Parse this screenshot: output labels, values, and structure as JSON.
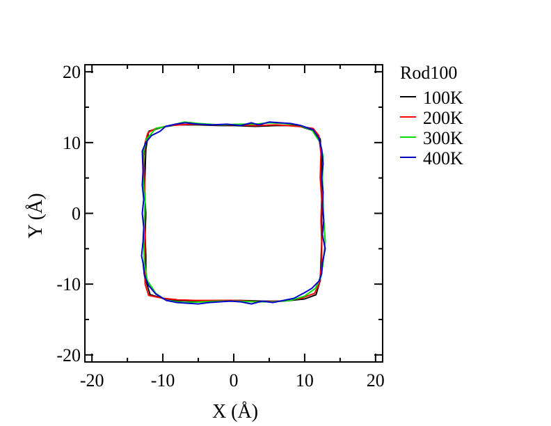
{
  "chart_data": {
    "type": "line",
    "title": "",
    "xlabel": "X (Å)",
    "ylabel": "Y (Å)",
    "xlim": [
      -21,
      21
    ],
    "ylim": [
      -21,
      21
    ],
    "xticks": [
      -20,
      -10,
      0,
      10,
      20
    ],
    "yticks": [
      -20,
      -10,
      0,
      10,
      20
    ],
    "xtick_labels": [
      "-20",
      "-10",
      "0",
      "10",
      "20"
    ],
    "ytick_labels": [
      "-20",
      "-10",
      "0",
      "10",
      "20"
    ],
    "minor_tick_step": 5,
    "grid": false,
    "legend_position": "outside-right",
    "legend_title": "Rod100",
    "series": [
      {
        "name": "100K",
        "color": "#000000",
        "points": [
          [
            -12.0,
            11.6
          ],
          [
            -10.0,
            12.2
          ],
          [
            -8.0,
            12.5
          ],
          [
            -5.0,
            12.5
          ],
          [
            -2.0,
            12.4
          ],
          [
            0.0,
            12.4
          ],
          [
            3.0,
            12.3
          ],
          [
            6.0,
            12.4
          ],
          [
            9.0,
            12.4
          ],
          [
            11.5,
            11.6
          ],
          [
            12.2,
            10.5
          ],
          [
            12.4,
            8.0
          ],
          [
            12.3,
            5.0
          ],
          [
            12.4,
            2.0
          ],
          [
            12.4,
            -1.0
          ],
          [
            12.4,
            -4.0
          ],
          [
            12.3,
            -7.0
          ],
          [
            12.2,
            -9.5
          ],
          [
            11.6,
            -11.5
          ],
          [
            10.0,
            -12.1
          ],
          [
            7.0,
            -12.4
          ],
          [
            4.0,
            -12.4
          ],
          [
            1.0,
            -12.3
          ],
          [
            -2.0,
            -12.3
          ],
          [
            -5.0,
            -12.4
          ],
          [
            -8.0,
            -12.3
          ],
          [
            -10.0,
            -12.0
          ],
          [
            -11.8,
            -11.5
          ],
          [
            -12.4,
            -9.5
          ],
          [
            -12.4,
            -6.0
          ],
          [
            -12.5,
            -3.0
          ],
          [
            -12.4,
            0.0
          ],
          [
            -12.6,
            3.0
          ],
          [
            -12.5,
            6.0
          ],
          [
            -12.4,
            9.0
          ],
          [
            -12.0,
            11.6
          ]
        ]
      },
      {
        "name": "200K",
        "color": "#ff0000",
        "points": [
          [
            -12.1,
            11.4
          ],
          [
            -11.0,
            12.0
          ],
          [
            -9.0,
            12.4
          ],
          [
            -6.0,
            12.6
          ],
          [
            -3.0,
            12.5
          ],
          [
            0.0,
            12.5
          ],
          [
            3.0,
            12.4
          ],
          [
            6.0,
            12.5
          ],
          [
            9.0,
            12.3
          ],
          [
            11.2,
            12.0
          ],
          [
            12.0,
            11.0
          ],
          [
            12.3,
            8.5
          ],
          [
            12.2,
            5.0
          ],
          [
            12.4,
            2.0
          ],
          [
            12.3,
            -1.0
          ],
          [
            12.4,
            -4.0
          ],
          [
            12.4,
            -7.0
          ],
          [
            12.1,
            -9.8
          ],
          [
            11.4,
            -11.3
          ],
          [
            9.5,
            -12.0
          ],
          [
            6.5,
            -12.4
          ],
          [
            3.5,
            -12.5
          ],
          [
            0.5,
            -12.3
          ],
          [
            -2.5,
            -12.3
          ],
          [
            -5.5,
            -12.3
          ],
          [
            -8.0,
            -12.2
          ],
          [
            -10.0,
            -12.0
          ],
          [
            -12.0,
            -11.6
          ],
          [
            -12.5,
            -10.0
          ],
          [
            -12.6,
            -7.0
          ],
          [
            -12.5,
            -4.0
          ],
          [
            -12.6,
            -1.0
          ],
          [
            -12.5,
            2.0
          ],
          [
            -12.6,
            5.0
          ],
          [
            -12.7,
            8.0
          ],
          [
            -12.5,
            10.0
          ],
          [
            -12.1,
            11.4
          ]
        ]
      },
      {
        "name": "300K",
        "color": "#00dd00",
        "points": [
          [
            -12.8,
            8.5
          ],
          [
            -12.3,
            10.5
          ],
          [
            -11.0,
            12.0
          ],
          [
            -9.0,
            12.4
          ],
          [
            -7.0,
            12.9
          ],
          [
            -5.0,
            12.7
          ],
          [
            -2.0,
            12.5
          ],
          [
            1.0,
            12.6
          ],
          [
            3.0,
            12.6
          ],
          [
            5.0,
            12.8
          ],
          [
            7.0,
            12.7
          ],
          [
            9.0,
            12.5
          ],
          [
            11.0,
            11.8
          ],
          [
            12.2,
            10.0
          ],
          [
            12.6,
            8.0
          ],
          [
            12.5,
            5.0
          ],
          [
            12.6,
            2.0
          ],
          [
            12.7,
            -1.0
          ],
          [
            12.9,
            -4.0
          ],
          [
            12.6,
            -7.0
          ],
          [
            12.3,
            -9.0
          ],
          [
            11.5,
            -10.6
          ],
          [
            10.0,
            -11.7
          ],
          [
            8.0,
            -12.3
          ],
          [
            5.5,
            -12.5
          ],
          [
            3.0,
            -12.5
          ],
          [
            0.5,
            -12.4
          ],
          [
            -2.0,
            -12.4
          ],
          [
            -4.5,
            -12.5
          ],
          [
            -7.0,
            -12.6
          ],
          [
            -9.5,
            -12.3
          ],
          [
            -11.0,
            -11.3
          ],
          [
            -12.2,
            -9.5
          ],
          [
            -12.6,
            -7.0
          ],
          [
            -12.7,
            -4.0
          ],
          [
            -12.6,
            -1.0
          ],
          [
            -12.5,
            2.0
          ],
          [
            -12.8,
            5.0
          ],
          [
            -12.8,
            8.5
          ]
        ]
      },
      {
        "name": "400K",
        "color": "#0000cc",
        "points": [
          [
            -12.9,
            8.8
          ],
          [
            -12.4,
            10.0
          ],
          [
            -11.6,
            11.0
          ],
          [
            -10.4,
            11.6
          ],
          [
            -9.6,
            12.3
          ],
          [
            -8.2,
            12.6
          ],
          [
            -6.8,
            12.8
          ],
          [
            -5.0,
            12.6
          ],
          [
            -3.0,
            12.5
          ],
          [
            -1.0,
            12.6
          ],
          [
            1.0,
            12.4
          ],
          [
            2.5,
            12.8
          ],
          [
            3.5,
            12.5
          ],
          [
            5.0,
            12.9
          ],
          [
            6.5,
            12.8
          ],
          [
            8.0,
            12.7
          ],
          [
            9.5,
            12.4
          ],
          [
            11.2,
            11.8
          ],
          [
            12.0,
            10.6
          ],
          [
            12.4,
            9.0
          ],
          [
            12.6,
            7.0
          ],
          [
            12.4,
            5.0
          ],
          [
            12.6,
            3.0
          ],
          [
            12.5,
            1.0
          ],
          [
            12.7,
            -1.0
          ],
          [
            12.5,
            -3.0
          ],
          [
            12.9,
            -5.0
          ],
          [
            12.5,
            -7.0
          ],
          [
            12.4,
            -8.5
          ],
          [
            12.0,
            -9.6
          ],
          [
            11.0,
            -10.6
          ],
          [
            10.0,
            -11.2
          ],
          [
            8.5,
            -12.0
          ],
          [
            7.0,
            -12.3
          ],
          [
            5.5,
            -12.6
          ],
          [
            4.0,
            -12.4
          ],
          [
            2.5,
            -12.8
          ],
          [
            1.0,
            -12.5
          ],
          [
            -0.5,
            -12.4
          ],
          [
            -2.0,
            -12.5
          ],
          [
            -3.5,
            -12.6
          ],
          [
            -5.0,
            -12.8
          ],
          [
            -6.5,
            -12.7
          ],
          [
            -8.0,
            -12.6
          ],
          [
            -9.5,
            -12.3
          ],
          [
            -11.0,
            -11.4
          ],
          [
            -12.0,
            -10.2
          ],
          [
            -12.6,
            -8.8
          ],
          [
            -12.8,
            -7.0
          ],
          [
            -13.0,
            -6.0
          ],
          [
            -12.8,
            -4.0
          ],
          [
            -12.7,
            -2.0
          ],
          [
            -12.9,
            0.0
          ],
          [
            -12.7,
            2.0
          ],
          [
            -12.9,
            4.0
          ],
          [
            -12.8,
            6.0
          ],
          [
            -12.9,
            8.8
          ]
        ]
      }
    ]
  }
}
